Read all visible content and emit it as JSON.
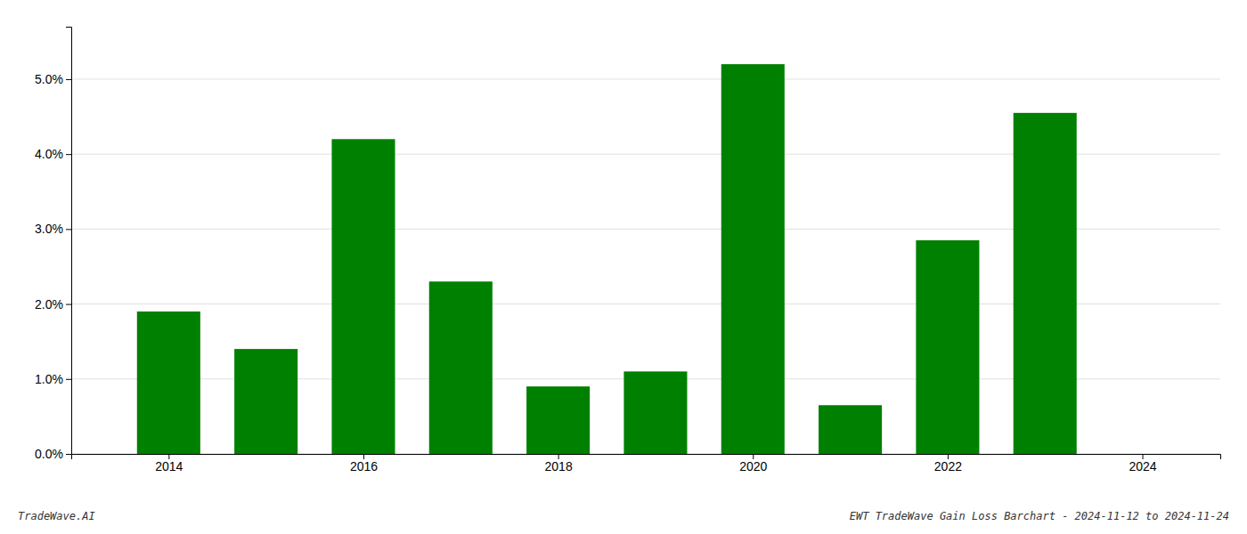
{
  "chart_data": {
    "type": "bar",
    "x": [
      2014,
      2015,
      2016,
      2017,
      2018,
      2019,
      2020,
      2021,
      2022,
      2023
    ],
    "values": [
      0.019,
      0.014,
      0.042,
      0.023,
      0.009,
      0.011,
      0.052,
      0.0065,
      0.0285,
      0.0455
    ],
    "color": "#008000",
    "xlim": [
      2013.0,
      2024.8
    ],
    "xticks": [
      2014,
      2016,
      2018,
      2020,
      2022,
      2024
    ],
    "ylim": [
      0,
      0.057
    ],
    "yticks": [
      {
        "value": 0.0,
        "label": "0.0%"
      },
      {
        "value": 0.01,
        "label": "1.0%"
      },
      {
        "value": 0.02,
        "label": "2.0%"
      },
      {
        "value": 0.03,
        "label": "3.0%"
      },
      {
        "value": 0.04,
        "label": "4.0%"
      },
      {
        "value": 0.05,
        "label": "5.0%"
      }
    ],
    "grid": true,
    "annotations": [
      "TradeWave.AI",
      "EWT TradeWave Gain Loss Barchart - 2024-11-12 to 2024-11-24"
    ]
  }
}
